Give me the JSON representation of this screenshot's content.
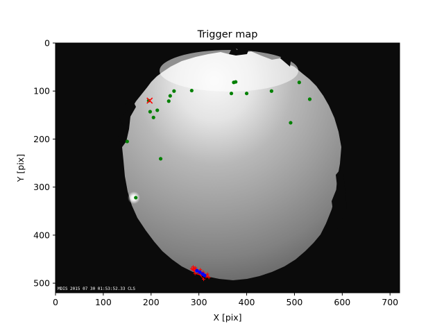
{
  "chart_data": {
    "type": "scatter",
    "title": "Trigger map",
    "xlabel": "X [pix]",
    "ylabel": "Y [pix]",
    "xlim": [
      0,
      720
    ],
    "ylim": [
      520,
      0
    ],
    "y_inverted": true,
    "background": "all-sky camera image (fisheye view of night sky with bright moonlit haze and tree silhouettes around the horizon)",
    "image_timestamp_text": "MDIS 2015 07 30 01:53:52.33 CLS",
    "xticks": [
      0,
      100,
      200,
      300,
      400,
      500,
      600,
      700
    ],
    "yticks": [
      0,
      100,
      200,
      300,
      400,
      500
    ],
    "series": [
      {
        "color": "#008000",
        "marker": "circle",
        "points": [
          [
            150,
            205
          ],
          [
            168,
            322
          ],
          [
            195,
            120
          ],
          [
            198,
            143
          ],
          [
            205,
            155
          ],
          [
            213,
            140
          ],
          [
            220,
            241
          ],
          [
            237,
            121
          ],
          [
            240,
            110
          ],
          [
            248,
            100
          ],
          [
            285,
            99
          ],
          [
            368,
            105
          ],
          [
            373,
            82
          ],
          [
            377,
            81
          ],
          [
            400,
            105
          ],
          [
            452,
            100
          ],
          [
            492,
            166
          ],
          [
            510,
            82
          ],
          [
            532,
            117
          ]
        ]
      },
      {
        "color": "#ff0000",
        "marker": "x",
        "points": [
          [
            197,
            120
          ]
        ]
      },
      {
        "color": "#ff0000",
        "marker": "trail",
        "points": [
          [
            285,
            470
          ],
          [
            289,
            473
          ],
          [
            293,
            468
          ],
          [
            297,
            475
          ],
          [
            300,
            478
          ],
          [
            303,
            472
          ],
          [
            306,
            480
          ],
          [
            309,
            477
          ],
          [
            312,
            483
          ],
          [
            315,
            486
          ],
          [
            318,
            481
          ],
          [
            321,
            488
          ],
          [
            292,
            480
          ],
          [
            288,
            466
          ],
          [
            310,
            492
          ]
        ]
      },
      {
        "color": "#0000ff",
        "marker": "dot",
        "points": [
          [
            296,
            474
          ],
          [
            302,
            477
          ],
          [
            308,
            481
          ],
          [
            312,
            484
          ]
        ]
      }
    ],
    "colors": {
      "sky_bright": "#f2f2f2",
      "sky_mid": "#a9a9a9",
      "sky_dark": "#5a5a5a",
      "surround": "#0b0b0b"
    }
  }
}
